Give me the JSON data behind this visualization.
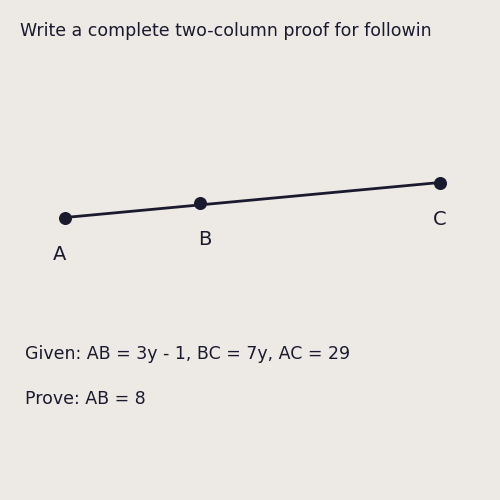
{
  "title": "Write a complete two-column proof for followin",
  "title_fontsize": 12.5,
  "background_color": "#ede9e4",
  "point_A_fig": [
    0.13,
    0.565
  ],
  "point_B_fig": [
    0.4,
    0.595
  ],
  "point_C_fig": [
    0.88,
    0.635
  ],
  "point_color": "#1a1a2e",
  "point_size": 70,
  "line_color": "#1a1a2e",
  "line_width": 2.0,
  "label_A": "A",
  "label_B": "B",
  "label_C": "C",
  "label_fontsize": 14,
  "given_text": "Given: AB = 3y - 1, BC = 7y, AC = 29",
  "prove_text": "Prove: AB = 8",
  "text_fontsize": 12.5
}
